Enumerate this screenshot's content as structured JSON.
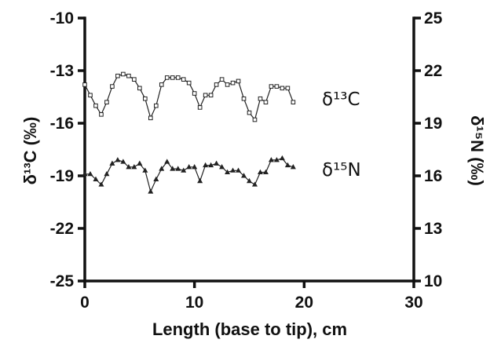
{
  "chart_data": {
    "type": "line",
    "title": "",
    "xlabel": "Length (base to tip), cm",
    "ylabel_left": "δ¹³C (‰)",
    "ylabel_right": "δ¹⁵N (‰)",
    "xlim": [
      0,
      30
    ],
    "xticks": [
      0,
      10,
      20,
      30
    ],
    "ylim_left": [
      -25,
      -10
    ],
    "yticks_left": [
      -25,
      -22,
      -19,
      -16,
      -13,
      -10
    ],
    "ylim_right": [
      10,
      25
    ],
    "yticks_right": [
      10,
      13,
      16,
      19,
      22,
      25
    ],
    "grid": false,
    "series": [
      {
        "name": "δ13C",
        "label": "δ¹³C",
        "axis": "left",
        "marker": "square",
        "x": [
          0,
          0.5,
          1,
          1.5,
          2,
          2.5,
          3,
          3.5,
          4,
          4.5,
          5,
          5.5,
          6,
          6.5,
          7,
          7.5,
          8,
          8.5,
          9,
          9.5,
          10,
          10.5,
          11,
          11.5,
          12,
          12.5,
          13,
          13.5,
          14,
          14.5,
          15,
          15.5,
          16,
          16.5,
          17,
          17.5,
          18,
          18.5,
          19
        ],
        "values": [
          -13.8,
          -14.4,
          -15.0,
          -15.5,
          -14.8,
          -13.9,
          -13.3,
          -13.2,
          -13.3,
          -13.5,
          -14.0,
          -14.6,
          -15.7,
          -15.0,
          -13.8,
          -13.4,
          -13.4,
          -13.4,
          -13.5,
          -13.7,
          -14.3,
          -15.1,
          -14.4,
          -14.4,
          -13.8,
          -13.5,
          -13.8,
          -13.7,
          -13.6,
          -14.6,
          -15.4,
          -15.8,
          -14.6,
          -14.8,
          -13.9,
          -13.9,
          -14.0,
          -14.0,
          -14.8
        ]
      },
      {
        "name": "δ15N",
        "label": "δ¹⁵N",
        "axis": "right",
        "marker": "triangle",
        "x": [
          0,
          0.5,
          1,
          1.5,
          2,
          2.5,
          3,
          3.5,
          4,
          4.5,
          5,
          5.5,
          6,
          6.5,
          7,
          7.5,
          8,
          8.5,
          9,
          9.5,
          10,
          10.5,
          11,
          11.5,
          12,
          12.5,
          13,
          13.5,
          14,
          14.5,
          15,
          15.5,
          16,
          16.5,
          17,
          17.5,
          18,
          18.5,
          19
        ],
        "values": [
          16.1,
          16.1,
          15.8,
          15.5,
          16.1,
          16.7,
          16.9,
          16.8,
          16.5,
          16.5,
          16.7,
          16.3,
          15.1,
          15.8,
          16.4,
          16.8,
          16.4,
          16.4,
          16.3,
          16.5,
          16.5,
          15.7,
          16.6,
          16.6,
          16.7,
          16.5,
          16.2,
          16.3,
          16.3,
          16.0,
          15.7,
          15.5,
          16.2,
          16.2,
          16.9,
          16.9,
          17.0,
          16.6,
          16.5
        ]
      }
    ]
  }
}
